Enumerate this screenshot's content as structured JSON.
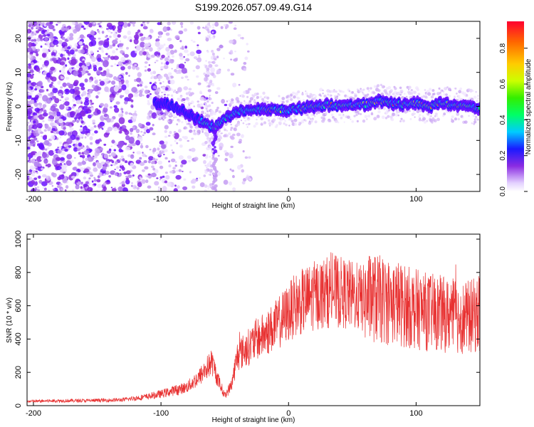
{
  "title": "S199.2026.057.09.49.G14",
  "chart_data": [
    {
      "type": "heatmap",
      "panel": "top",
      "xlabel": "Height of straight line (km)",
      "ylabel": "Frequency (Hz)",
      "xlim": [
        -205,
        150
      ],
      "ylim": [
        -25,
        25
      ],
      "xticks": [
        -200,
        -100,
        0,
        100
      ],
      "yticks": [
        -20,
        -10,
        0,
        10,
        20
      ],
      "ridge": {
        "heights": [
          -100,
          -90,
          -80,
          -70,
          -62,
          -57,
          -52,
          -45,
          -38,
          -30,
          -20,
          -10,
          0,
          10,
          20,
          30,
          40,
          50,
          60,
          70,
          80,
          90,
          100,
          110,
          120,
          130,
          140,
          150
        ],
        "frequencies": [
          1,
          0,
          -2,
          -4,
          -5.5,
          -6,
          -4,
          -2.5,
          -1.5,
          -1,
          -1,
          -1,
          -1,
          -0.5,
          0,
          0.5,
          0,
          0.5,
          0.5,
          1.5,
          1,
          0.5,
          1,
          0,
          1,
          0.5,
          0,
          -0.5
        ]
      },
      "colorbar": {
        "label": "Normalized spectral amplitude",
        "range": [
          0.0,
          0.95
        ],
        "ticks": [
          0.0,
          0.2,
          0.4,
          0.6,
          0.8
        ],
        "tick_labels": [
          "0.0",
          "0.2",
          "0.4",
          "0.6",
          "0.8"
        ]
      }
    },
    {
      "type": "line",
      "panel": "bottom",
      "xlabel": "Height of straight line (km)",
      "ylabel": "SNR (10 * v/v)",
      "xlim": [
        -205,
        150
      ],
      "ylim": [
        0,
        1030
      ],
      "xticks": [
        -200,
        -100,
        0,
        100
      ],
      "yticks": [
        0,
        200,
        400,
        600,
        800,
        1000
      ],
      "color": "#e83030",
      "series": [
        {
          "name": "SNR",
          "x": [
            -205,
            -190,
            -175,
            -160,
            -145,
            -130,
            -120,
            -110,
            -100,
            -90,
            -80,
            -75,
            -70,
            -65,
            -60,
            -55,
            -50,
            -45,
            -40,
            -35,
            -30,
            -25,
            -20,
            -15,
            -10,
            -5,
            0,
            5,
            10,
            15,
            20,
            25,
            30,
            35,
            40,
            45,
            50,
            55,
            60,
            65,
            70,
            75,
            80,
            85,
            90,
            95,
            100,
            105,
            110,
            115,
            120,
            125,
            130,
            135,
            140,
            145,
            150
          ],
          "y": [
            25,
            28,
            30,
            30,
            32,
            35,
            45,
            55,
            70,
            90,
            110,
            140,
            170,
            220,
            260,
            150,
            60,
            120,
            300,
            330,
            360,
            400,
            420,
            450,
            480,
            520,
            560,
            600,
            620,
            640,
            660,
            670,
            680,
            690,
            680,
            670,
            660,
            650,
            640,
            650,
            640,
            630,
            620,
            620,
            600,
            590,
            580,
            570,
            560,
            560,
            550,
            540,
            540,
            530,
            530,
            540,
            550
          ]
        }
      ]
    }
  ]
}
